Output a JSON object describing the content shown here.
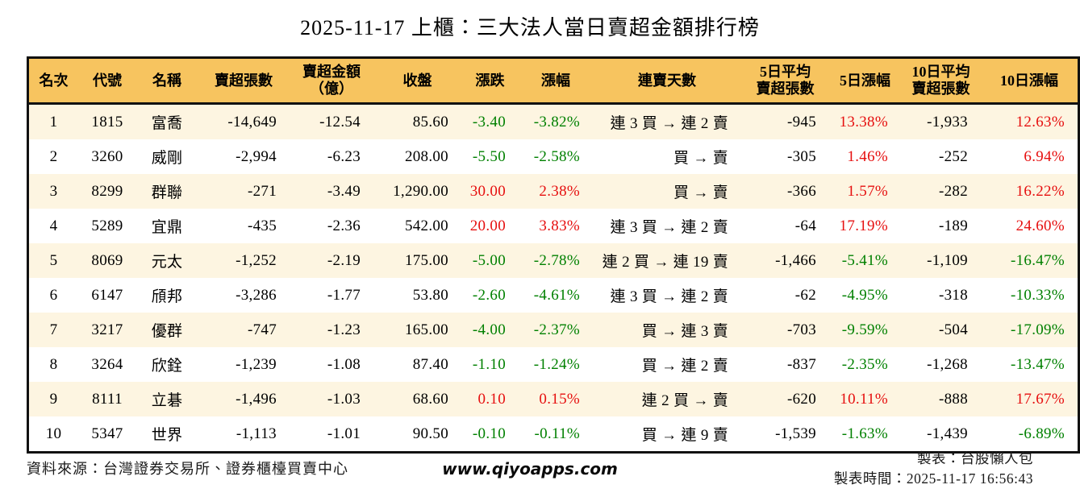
{
  "title": "2025-11-17 上櫃：三大法人當日賣超金額排行榜",
  "colors": {
    "header_bg": "#f7c45f",
    "stripe_bg": "#fdf5e1",
    "up_red": "#e60f0f",
    "down_green": "#008000",
    "border": "#111111"
  },
  "table": {
    "columns": [
      {
        "key": "rank",
        "label": "名次",
        "align": "center",
        "width": 57
      },
      {
        "key": "code",
        "label": "代號",
        "align": "center",
        "width": 68
      },
      {
        "key": "name",
        "label": "名稱",
        "align": "center",
        "width": 72
      },
      {
        "key": "sell_shares",
        "label": "賣超張數",
        "align": "right",
        "width": 110
      },
      {
        "key": "sell_amount",
        "label": "賣超金額\n（億）",
        "align": "right",
        "width": 100
      },
      {
        "key": "close",
        "label": "收盤",
        "align": "right",
        "width": 105
      },
      {
        "key": "change",
        "label": "漲跌",
        "align": "right",
        "width": 67,
        "colored": true
      },
      {
        "key": "change_pct",
        "label": "漲幅",
        "align": "right",
        "width": 88,
        "colored": true
      },
      {
        "key": "streak",
        "label": "連賣天數",
        "align": "right",
        "width": 180
      },
      {
        "key": "avg5",
        "label": "5日平均\n賣超張數",
        "align": "right",
        "width": 105
      },
      {
        "key": "pct5",
        "label": "5日漲幅",
        "align": "right",
        "width": 85,
        "colored": true
      },
      {
        "key": "avg10",
        "label": "10日平均\n賣超張數",
        "align": "right",
        "width": 95
      },
      {
        "key": "pct10",
        "label": "10日漲幅",
        "align": "right",
        "width": 116,
        "colored": true
      }
    ],
    "rows": [
      {
        "rank": "1",
        "code": "1815",
        "name": "富喬",
        "sell_shares": "-14,649",
        "sell_amount": "-12.54",
        "close": "85.60",
        "change": "-3.40",
        "change_pct": "-3.82%",
        "streak": "連 3 買 → 連 2 賣",
        "avg5": "-945",
        "pct5": "13.38%",
        "avg10": "-1,933",
        "pct10": "12.63%"
      },
      {
        "rank": "2",
        "code": "3260",
        "name": "威剛",
        "sell_shares": "-2,994",
        "sell_amount": "-6.23",
        "close": "208.00",
        "change": "-5.50",
        "change_pct": "-2.58%",
        "streak": "買 → 賣",
        "avg5": "-305",
        "pct5": "1.46%",
        "avg10": "-252",
        "pct10": "6.94%"
      },
      {
        "rank": "3",
        "code": "8299",
        "name": "群聯",
        "sell_shares": "-271",
        "sell_amount": "-3.49",
        "close": "1,290.00",
        "change": "30.00",
        "change_pct": "2.38%",
        "streak": "買 → 賣",
        "avg5": "-366",
        "pct5": "1.57%",
        "avg10": "-282",
        "pct10": "16.22%"
      },
      {
        "rank": "4",
        "code": "5289",
        "name": "宜鼎",
        "sell_shares": "-435",
        "sell_amount": "-2.36",
        "close": "542.00",
        "change": "20.00",
        "change_pct": "3.83%",
        "streak": "連 3 買 → 連 2 賣",
        "avg5": "-64",
        "pct5": "17.19%",
        "avg10": "-189",
        "pct10": "24.60%"
      },
      {
        "rank": "5",
        "code": "8069",
        "name": "元太",
        "sell_shares": "-1,252",
        "sell_amount": "-2.19",
        "close": "175.00",
        "change": "-5.00",
        "change_pct": "-2.78%",
        "streak": "連 2 買 → 連 19 賣",
        "avg5": "-1,466",
        "pct5": "-5.41%",
        "avg10": "-1,109",
        "pct10": "-16.47%"
      },
      {
        "rank": "6",
        "code": "6147",
        "name": "頎邦",
        "sell_shares": "-3,286",
        "sell_amount": "-1.77",
        "close": "53.80",
        "change": "-2.60",
        "change_pct": "-4.61%",
        "streak": "連 3 買 → 連 2 賣",
        "avg5": "-62",
        "pct5": "-4.95%",
        "avg10": "-318",
        "pct10": "-10.33%"
      },
      {
        "rank": "7",
        "code": "3217",
        "name": "優群",
        "sell_shares": "-747",
        "sell_amount": "-1.23",
        "close": "165.00",
        "change": "-4.00",
        "change_pct": "-2.37%",
        "streak": "買 → 連 3 賣",
        "avg5": "-703",
        "pct5": "-9.59%",
        "avg10": "-504",
        "pct10": "-17.09%"
      },
      {
        "rank": "8",
        "code": "3264",
        "name": "欣銓",
        "sell_shares": "-1,239",
        "sell_amount": "-1.08",
        "close": "87.40",
        "change": "-1.10",
        "change_pct": "-1.24%",
        "streak": "買 → 連 2 賣",
        "avg5": "-837",
        "pct5": "-2.35%",
        "avg10": "-1,268",
        "pct10": "-13.47%"
      },
      {
        "rank": "9",
        "code": "8111",
        "name": "立碁",
        "sell_shares": "-1,496",
        "sell_amount": "-1.03",
        "close": "68.60",
        "change": "0.10",
        "change_pct": "0.15%",
        "streak": "連 2 買 → 賣",
        "avg5": "-620",
        "pct5": "10.11%",
        "avg10": "-888",
        "pct10": "17.67%"
      },
      {
        "rank": "10",
        "code": "5347",
        "name": "世界",
        "sell_shares": "-1,113",
        "sell_amount": "-1.01",
        "close": "90.50",
        "change": "-0.10",
        "change_pct": "-0.11%",
        "streak": "買 → 連 9 賣",
        "avg5": "-1,539",
        "pct5": "-1.63%",
        "avg10": "-1,439",
        "pct10": "-6.89%"
      }
    ]
  },
  "footer": {
    "source": "資料來源：台灣證券交易所、證券櫃檯買賣中心",
    "website": "www.qiyoapps.com",
    "author": "製表：台股懶人包",
    "generated": "製表時間：2025-11-17 16:56:43"
  }
}
